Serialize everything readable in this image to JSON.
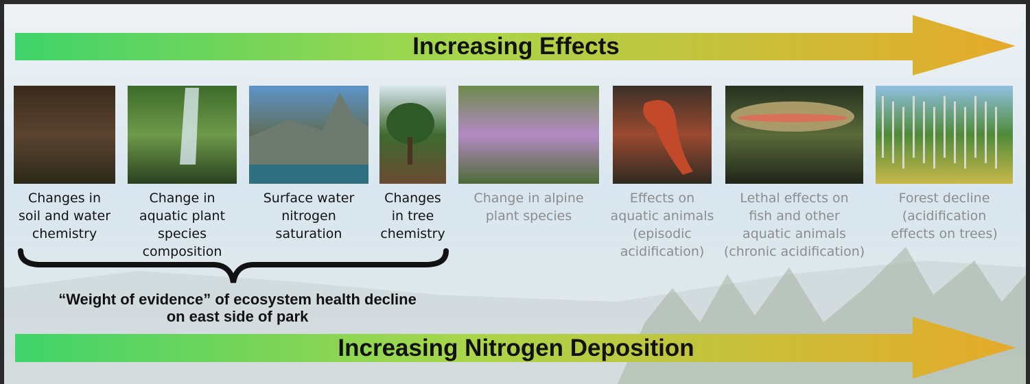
{
  "top_arrow": {
    "label": "Increasing Effects"
  },
  "items": [
    {
      "caption": [
        "Changes in",
        "soil and water",
        "chemistry"
      ]
    },
    {
      "caption": [
        "Change in",
        "aquatic plant",
        "species",
        "composition"
      ]
    },
    {
      "caption": [
        "Surface water",
        "nitrogen",
        "saturation"
      ]
    },
    {
      "caption": [
        "Changes",
        "in tree",
        "chemistry"
      ]
    },
    {
      "caption": [
        "Change in alpine",
        "plant species"
      ]
    },
    {
      "caption": [
        "Effects on",
        "aquatic animals",
        "(episodic",
        "acidification)"
      ]
    },
    {
      "caption": [
        "Lethal effects on",
        "fish and other",
        "aquatic animals",
        "(chronic acidification)"
      ]
    },
    {
      "caption": [
        "Forest decline",
        "(acidification",
        "effects on trees)"
      ]
    }
  ],
  "bracket": {
    "label": [
      "“Weight of evidence” of ecosystem health decline",
      "on east side of park"
    ]
  },
  "bottom_arrow": {
    "label": "Increasing Nitrogen Deposition"
  }
}
